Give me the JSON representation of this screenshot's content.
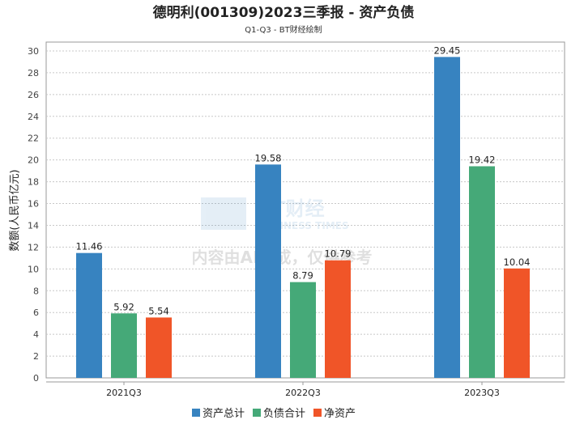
{
  "chart_data": {
    "type": "bar",
    "title": "德明利(001309)2023三季报 - 资产负债",
    "subtitle": "Q1-Q3 - BT财经绘制",
    "xlabel": "",
    "ylabel": "数额(人民币亿元)",
    "ylim": [
      0,
      30
    ],
    "yticks": [
      0,
      2,
      4,
      6,
      8,
      10,
      12,
      14,
      16,
      18,
      20,
      22,
      24,
      26,
      28,
      30
    ],
    "grid": true,
    "legend_position": "bottom",
    "categories": [
      "2021Q3",
      "2022Q3",
      "2023Q3"
    ],
    "series": [
      {
        "name": "资产总计",
        "color": "#3783c0",
        "values": [
          11.46,
          19.58,
          29.45
        ]
      },
      {
        "name": "负债合计",
        "color": "#45a978",
        "values": [
          5.92,
          8.79,
          19.42
        ]
      },
      {
        "name": "净资产",
        "color": "#f05528",
        "values": [
          5.54,
          10.79,
          10.04
        ]
      }
    ]
  },
  "watermark": {
    "logo_text": "BT财经",
    "logo_sub": "BUSINESS TIMES",
    "notice": "内容由AI生成，仅供参考"
  }
}
